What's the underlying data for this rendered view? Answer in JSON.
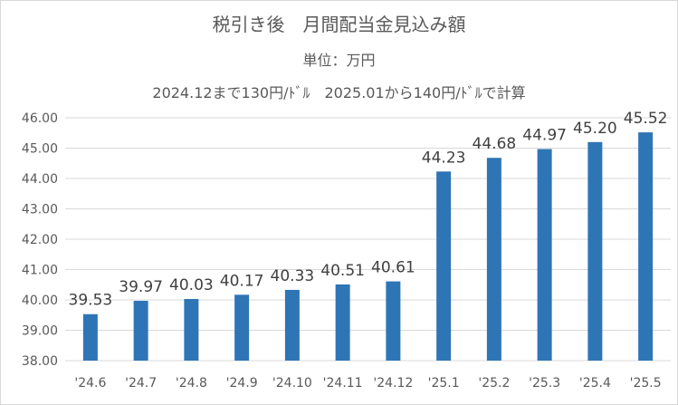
{
  "chart_data": {
    "type": "bar",
    "title": "税引き後　月間配当金見込み額",
    "subtitle": "単位：万円",
    "subtitle2": "2024.12まで130円/ﾄﾞﾙ　2025.01から140円/ﾄﾞﾙで計算",
    "categories": [
      "'24.6",
      "'24.7",
      "'24.8",
      "'24.9",
      "'24.10",
      "'24.11",
      "'24.12",
      "'25.1",
      "'25.2",
      "'25.3",
      "'25.4",
      "'25.5"
    ],
    "values": [
      39.53,
      39.97,
      40.03,
      40.17,
      40.33,
      40.51,
      40.61,
      44.23,
      44.68,
      44.97,
      45.2,
      45.52
    ],
    "value_labels": [
      "39.53",
      "39.97",
      "40.03",
      "40.17",
      "40.33",
      "40.51",
      "40.61",
      "44.23",
      "44.68",
      "44.97",
      "45.20",
      "45.52"
    ],
    "ylim": [
      38.0,
      46.0
    ],
    "yticks": [
      "38.00",
      "39.00",
      "40.00",
      "41.00",
      "42.00",
      "43.00",
      "44.00",
      "45.00",
      "46.00"
    ],
    "xlabel": "",
    "ylabel": "",
    "grid": true,
    "bar_color": "#2e75b6",
    "grid_color": "#d9d9d9"
  }
}
